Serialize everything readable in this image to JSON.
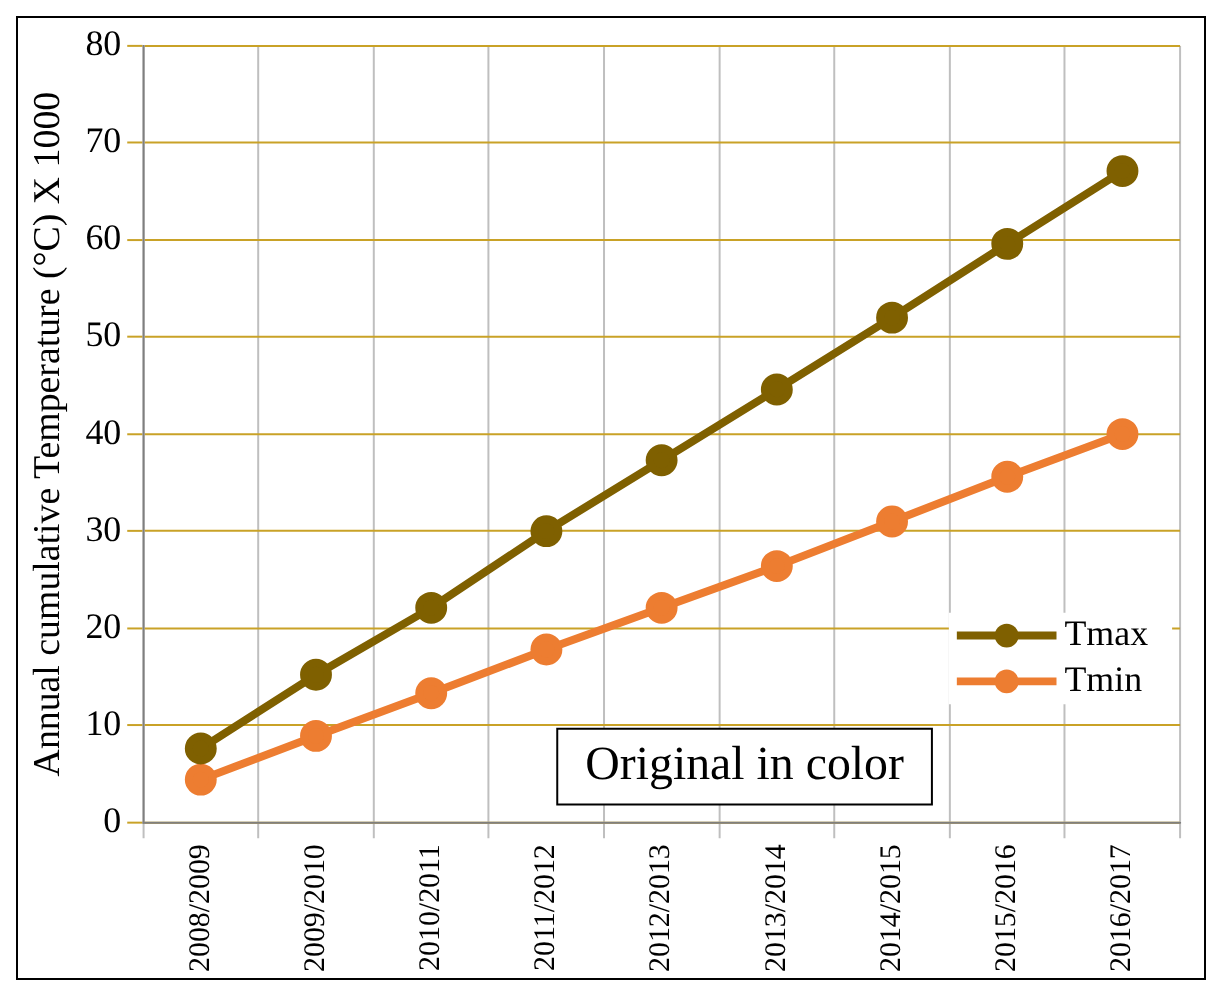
{
  "chart_data": {
    "type": "line",
    "ylabel": "Annual cumulative Temperature (°C) X 1000",
    "categories": [
      "2008/2009",
      "2009/2010",
      "2010/2011",
      "2011/2012",
      "2012/2013",
      "2013/2014",
      "2014/2015",
      "2015/2016",
      "2016/2017"
    ],
    "series": [
      {
        "name": "Tmax",
        "color": "#7f6000",
        "values": [
          7.6,
          15.2,
          22.1,
          30.0,
          37.3,
          44.6,
          52.0,
          59.6,
          67.1
        ]
      },
      {
        "name": "Tmin",
        "color": "#ed7d31",
        "values": [
          4.4,
          8.9,
          13.3,
          17.8,
          22.1,
          26.4,
          31.0,
          35.6,
          40.0
        ]
      }
    ],
    "ylim": [
      0,
      80
    ],
    "yticks": [
      0,
      10,
      20,
      30,
      40,
      50,
      60,
      70,
      80
    ],
    "grid": true,
    "legend": "right",
    "marker": "circle",
    "line_style": "solid",
    "annotations": [
      "Original in color"
    ]
  }
}
